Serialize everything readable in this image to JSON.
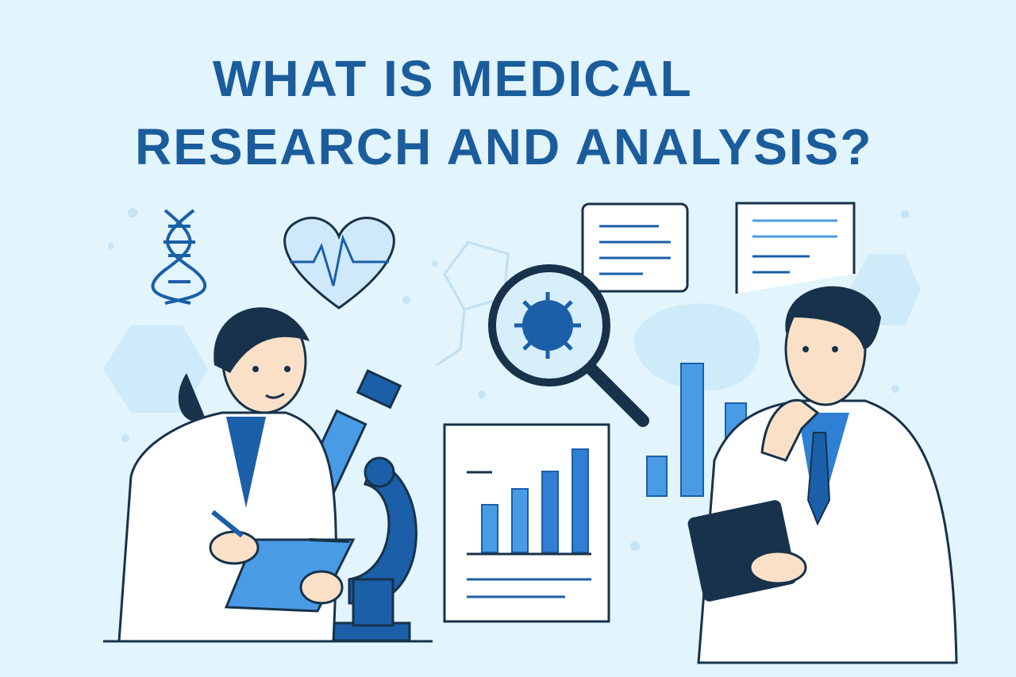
{
  "title": {
    "line1": "WHAT IS MEDICAL",
    "line2": "RESEARCH AND ANALYSIS?"
  },
  "colors": {
    "background": "#e2f4fc",
    "title": "#1b5c9c",
    "accent_blue": "#4a9be6",
    "dark_blue": "#1a5fa8",
    "navy": "#17324a",
    "skin": "#fbe0c8",
    "coat": "#ffffff"
  },
  "icons": [
    "dna-icon",
    "heart-pulse-icon",
    "magnifier-virus-icon",
    "microscope-icon",
    "bar-chart-document-icon",
    "clipboard-icon",
    "tablet-icon"
  ]
}
